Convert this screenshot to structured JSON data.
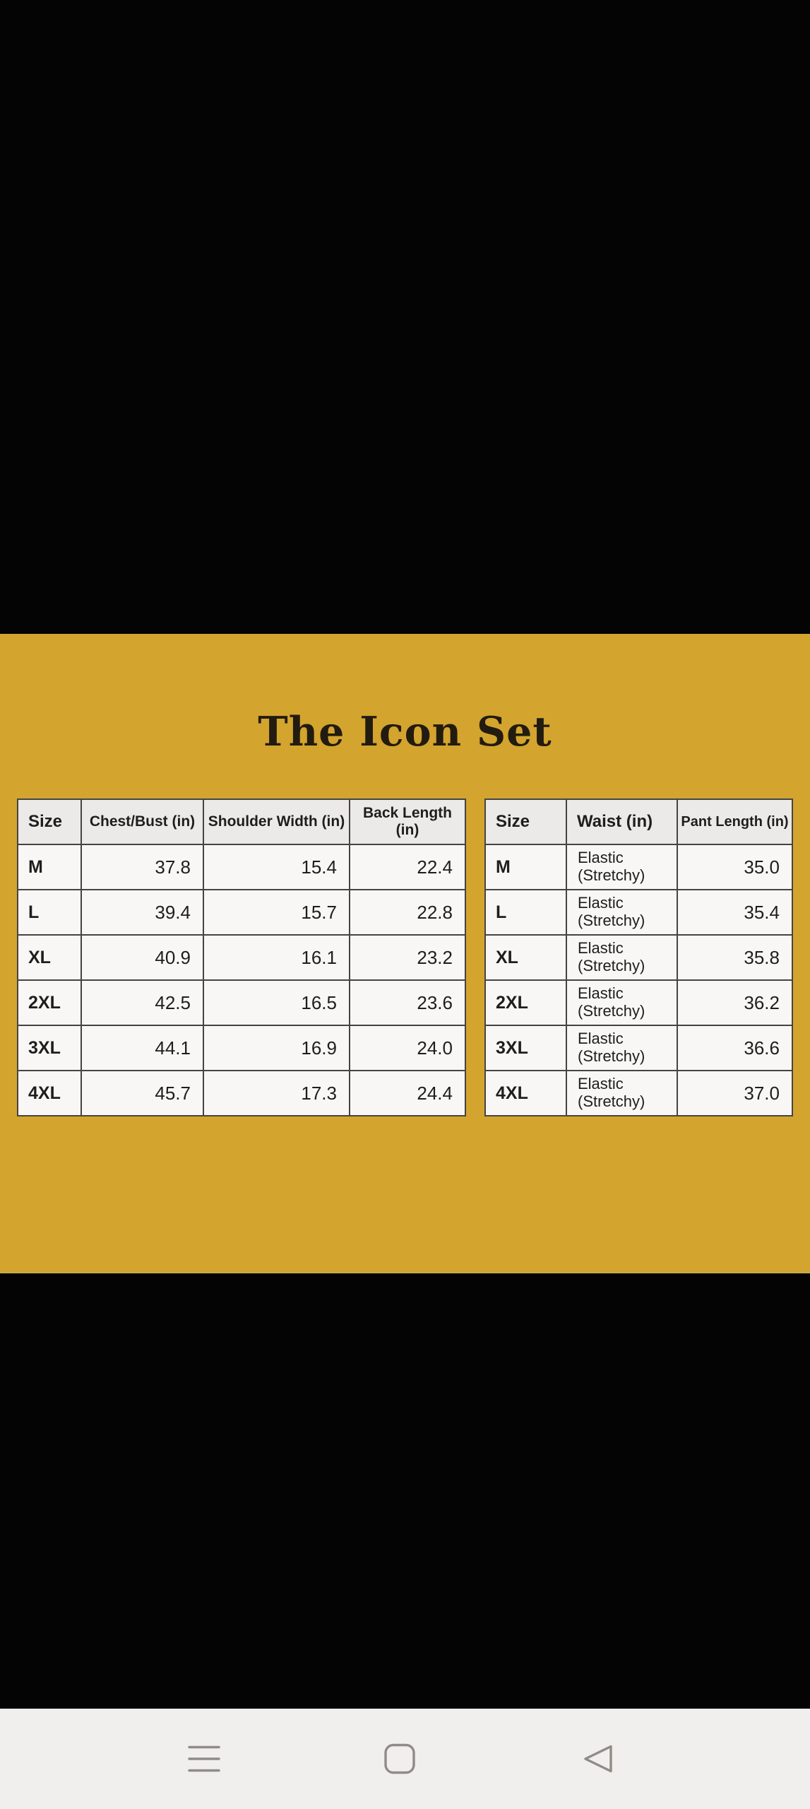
{
  "title": "The Icon Set",
  "colors": {
    "background": "#000000",
    "panel_background": "#d3a42e",
    "table_border": "#454442",
    "table_header_background": "#eceae8",
    "table_cell_background": "#f9f7f5",
    "title_text": "#221b10",
    "nav_background": "#f1efed",
    "nav_icon": "#8f8c88"
  },
  "tables": [
    {
      "name": "top-size-chart",
      "columns": [
        {
          "label": "Size",
          "align": "left"
        },
        {
          "label": "Chest/Bust (in)",
          "align": "right"
        },
        {
          "label": "Shoulder Width (in)",
          "align": "right"
        },
        {
          "label": "Back Length (in)",
          "align": "right"
        }
      ],
      "rows": [
        [
          "M",
          "37.8",
          "15.4",
          "22.4"
        ],
        [
          "L",
          "39.4",
          "15.7",
          "22.8"
        ],
        [
          "XL",
          "40.9",
          "16.1",
          "23.2"
        ],
        [
          "2XL",
          "42.5",
          "16.5",
          "23.6"
        ],
        [
          "3XL",
          "44.1",
          "16.9",
          "24.0"
        ],
        [
          "4XL",
          "45.7",
          "17.3",
          "24.4"
        ]
      ]
    },
    {
      "name": "pants-size-chart",
      "columns": [
        {
          "label": "Size",
          "align": "left"
        },
        {
          "label": "Waist (in)",
          "align": "left"
        },
        {
          "label": "Pant Length (in)",
          "align": "right"
        }
      ],
      "rows": [
        [
          "M",
          "Elastic (Stretchy)",
          "35.0"
        ],
        [
          "L",
          "Elastic (Stretchy)",
          "35.4"
        ],
        [
          "XL",
          "Elastic (Stretchy)",
          "35.8"
        ],
        [
          "2XL",
          "Elastic (Stretchy)",
          "36.2"
        ],
        [
          "3XL",
          "Elastic (Stretchy)",
          "36.6"
        ],
        [
          "4XL",
          "Elastic (Stretchy)",
          "37.0"
        ]
      ]
    }
  ],
  "nav": {
    "buttons": [
      {
        "name": "menu-button",
        "icon": "hamburger-menu-icon"
      },
      {
        "name": "home-button",
        "icon": "home-square-icon"
      },
      {
        "name": "back-button",
        "icon": "back-triangle-icon"
      }
    ]
  }
}
